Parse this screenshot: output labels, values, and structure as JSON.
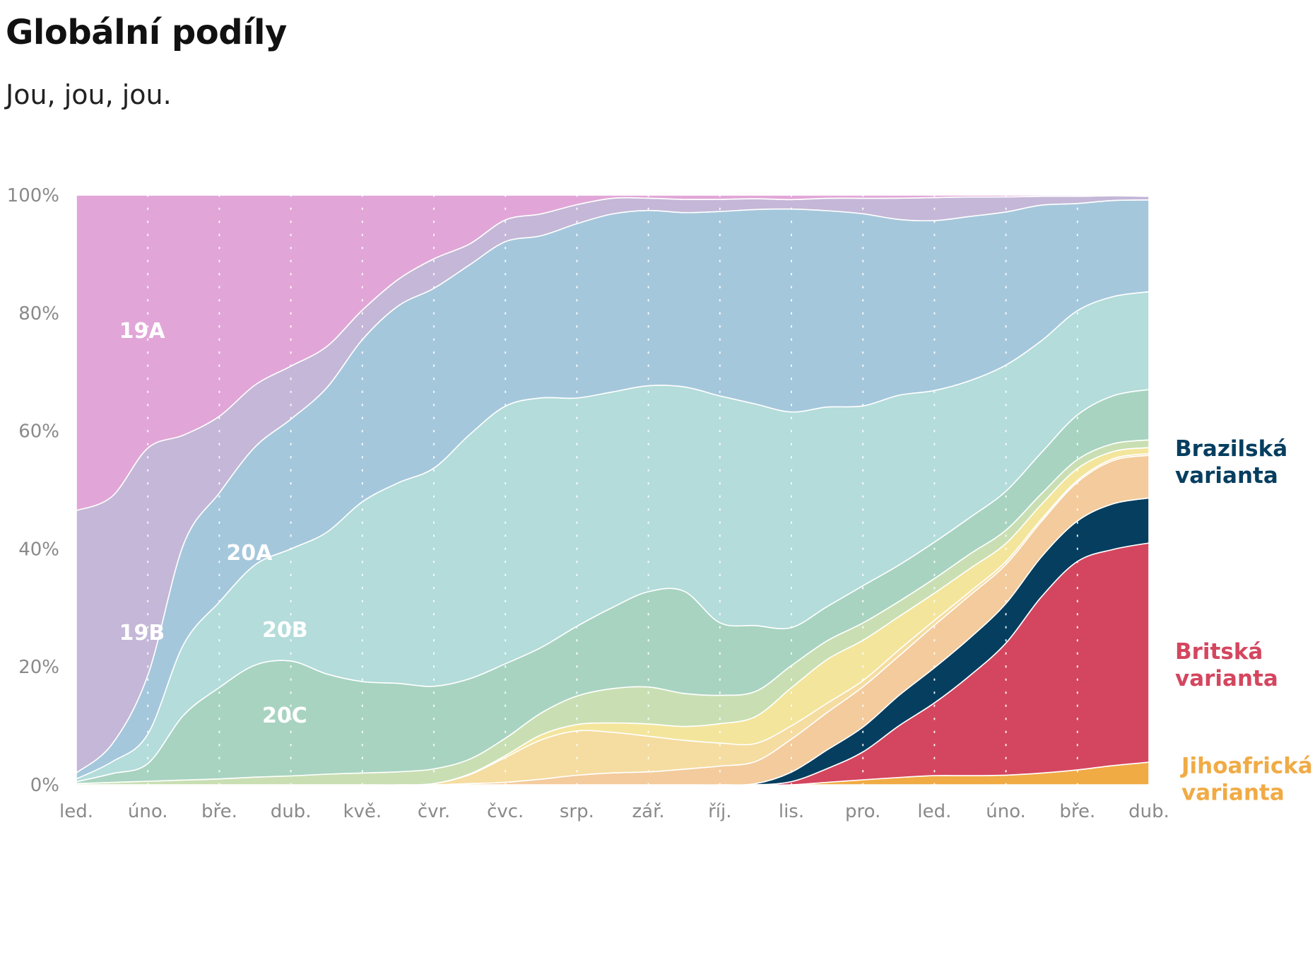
{
  "header": {
    "title": "Globální podíly",
    "subtitle": "Jou, jou, jou."
  },
  "chart_data": {
    "type": "area",
    "stacked": true,
    "normalized": true,
    "title": "Globální podíly",
    "subtitle": "Jou, jou, jou.",
    "xlabel": "",
    "ylabel": "",
    "ylim": [
      0,
      100
    ],
    "y_tick_labels": [
      "0%",
      "20%",
      "40%",
      "60%",
      "80%",
      "100%"
    ],
    "y_ticks": [
      0,
      20,
      40,
      60,
      80,
      100
    ],
    "x_tick_labels": [
      "led.",
      "úno.",
      "bře.",
      "dub.",
      "kvě.",
      "čvr.",
      "čvc.",
      "srp.",
      "zář.",
      "říj.",
      "lis.",
      "pro.",
      "led.",
      "úno.",
      "bře.",
      "dub."
    ],
    "grid": "dotted-vertical",
    "x": [
      "led.",
      "",
      "úno.",
      "",
      "bře.",
      "",
      "dub.",
      "",
      "kvě.",
      "",
      "čvr.",
      "",
      "čvc.",
      "",
      "srp.",
      "",
      "zář.",
      "",
      "říj.",
      "",
      "lis.",
      "",
      "pro.",
      "",
      "led.",
      "",
      "úno.",
      "",
      "bře.",
      "",
      "dub."
    ],
    "series": [
      {
        "name": "Jihoafrická varianta",
        "color": "#f0ab45",
        "values": [
          0,
          0,
          0,
          0,
          0,
          0,
          0,
          0,
          0,
          0,
          0,
          0,
          0,
          0,
          0,
          0,
          0,
          0,
          0,
          0,
          0,
          0.4,
          0.8,
          1.2,
          1.5,
          1.5,
          1.6,
          2.0,
          2.5,
          3.2,
          3.8
        ]
      },
      {
        "name": "Britská varianta",
        "color": "#d4465f",
        "values": [
          0,
          0,
          0,
          0,
          0,
          0,
          0,
          0,
          0,
          0,
          0,
          0,
          0,
          0,
          0,
          0,
          0,
          0,
          0,
          0,
          0.5,
          2.2,
          4.5,
          8.5,
          12.0,
          16.5,
          22.0,
          30.0,
          35.0,
          36.0,
          37.0
        ]
      },
      {
        "name": "Brazilská varianta",
        "color": "#063e5f",
        "values": [
          0,
          0,
          0,
          0,
          0,
          0,
          0,
          0,
          0,
          0,
          0,
          0,
          0,
          0,
          0,
          0,
          0,
          0,
          0,
          0.2,
          1.5,
          3.0,
          4.0,
          5.0,
          5.8,
          6.2,
          6.6,
          6.8,
          6.8,
          7.6,
          7.6
        ]
      },
      {
        "name": "",
        "color": "#f3cb9c",
        "values": [
          0,
          0,
          0,
          0,
          0,
          0,
          0,
          0,
          0,
          0,
          0,
          0,
          0,
          0,
          0,
          0,
          0,
          0,
          0,
          0,
          0,
          0,
          0,
          0,
          0,
          0,
          0,
          0,
          0,
          0,
          0
        ]
      },
      {
        "name": "",
        "color": "#f3cb9c",
        "values": [
          0,
          0,
          0,
          0,
          0,
          0,
          0,
          0,
          0,
          0,
          0,
          0.2,
          0.4,
          0.9,
          1.5,
          1.9,
          2.1,
          2.6,
          3.1,
          3.7,
          5.2,
          6.0,
          6.5,
          6.5,
          7.0,
          7.0,
          6.5,
          6.0,
          6.5,
          7.2,
          7.2
        ]
      },
      {
        "name": "",
        "color": "#f5dca0",
        "values": [
          0,
          0,
          0,
          0,
          0,
          0,
          0,
          0,
          0,
          0,
          0.2,
          1.5,
          4.0,
          6.3,
          7.0,
          6.5,
          5.8,
          4.8,
          3.8,
          3.0,
          2.1,
          1.5,
          1.0,
          1.0,
          0.8,
          0.6,
          0.5,
          0.4,
          0.3,
          0.3,
          0.3
        ]
      },
      {
        "name": "",
        "color": "#f3e59b",
        "values": [
          0,
          0,
          0,
          0,
          0,
          0,
          0,
          0,
          0,
          0,
          0,
          0.1,
          0.3,
          0.8,
          1.0,
          1.5,
          2.0,
          2.3,
          3.2,
          4.5,
          6.0,
          7.0,
          6.5,
          5.5,
          4.5,
          3.8,
          3.0,
          2.5,
          2.0,
          1.2,
          1.0
        ]
      },
      {
        "name": "",
        "color": "#c9dfb3",
        "values": [
          0.2,
          0.4,
          0.6,
          0.8,
          1.0,
          1.3,
          1.5,
          1.8,
          2.0,
          2.2,
          2.5,
          2.5,
          2.8,
          3.5,
          4.5,
          5.5,
          6.0,
          5.5,
          4.7,
          4.2,
          3.5,
          3.0,
          2.8,
          2.5,
          2.4,
          2.4,
          2.2,
          1.8,
          1.5,
          1.3,
          1.3
        ]
      },
      {
        "name": "20C",
        "color": "#a8d3c1",
        "values": [
          0.3,
          1.5,
          3.0,
          11.0,
          15.5,
          19.0,
          19.5,
          17.0,
          15.5,
          15.0,
          14.0,
          13.5,
          12.0,
          10.5,
          11.0,
          13.0,
          15.5,
          17.0,
          12.0,
          11.0,
          6.0,
          5.5,
          6.0,
          6.0,
          6.0,
          6.0,
          6.5,
          7.0,
          7.5,
          8.0,
          8.5
        ]
      },
      {
        "name": "20B",
        "color": "#b3dcda",
        "values": [
          0.5,
          2.0,
          5.0,
          12.0,
          14.5,
          17.0,
          19.0,
          24.0,
          30.5,
          34.0,
          37.0,
          41.0,
          41.5,
          40.0,
          36.0,
          34.5,
          33.5,
          34.0,
          37.5,
          37.0,
          34.0,
          32.0,
          29.0,
          28.0,
          25.0,
          22.5,
          21.0,
          19.0,
          17.5,
          16.5,
          16.5
        ]
      },
      {
        "name": "20A",
        "color": "#a5c7dc",
        "values": [
          1.0,
          3.0,
          10.0,
          17.0,
          18.5,
          20.0,
          22.0,
          24.5,
          27.5,
          30.0,
          30.5,
          28.5,
          26.5,
          26.0,
          27.5,
          28.5,
          28.5,
          29.0,
          30.5,
          32.5,
          32.0,
          31.5,
          31.0,
          29.0,
          28.0,
          27.0,
          25.5,
          23.0,
          18.0,
          16.0,
          15.5
        ]
      },
      {
        "name": "19B",
        "color": "#c4b7d7",
        "values": [
          44.5,
          42.0,
          38.5,
          18.5,
          13.0,
          10.5,
          9.0,
          7.0,
          5.0,
          4.5,
          5.0,
          3.5,
          3.5,
          3.5,
          3.0,
          2.5,
          2.0,
          2.2,
          2.0,
          1.8,
          1.5,
          2.0,
          2.5,
          3.5,
          3.8,
          3.2,
          2.5,
          1.5,
          1.2,
          0.8,
          0.6
        ]
      },
      {
        "name": "19A",
        "color": "#e1a6d7",
        "values": [
          53.5,
          51.1,
          42.9,
          40.7,
          37.5,
          32.2,
          29.0,
          25.7,
          19.5,
          14.3,
          10.8,
          8.2,
          4.0,
          3.0,
          1.5,
          0.5,
          0.5,
          0.7,
          0.7,
          0.6,
          0.7,
          0.5,
          0.5,
          0.5,
          0.4,
          0.3,
          0.3,
          0.2,
          0.2,
          0.1,
          0.2
        ]
      }
    ],
    "annotations": [
      {
        "text": "19A",
        "series": "19A"
      },
      {
        "text": "19B",
        "series": "19B"
      },
      {
        "text": "20A",
        "series": "20A"
      },
      {
        "text": "20B",
        "series": "20B"
      },
      {
        "text": "20C",
        "series": "20C"
      },
      {
        "text": "Brazilská varianta",
        "lines": [
          "Brazilská",
          "varianta"
        ],
        "color": "#063e5f"
      },
      {
        "text": "Britská varianta",
        "lines": [
          "Britská",
          "varianta"
        ],
        "color": "#d4465f"
      },
      {
        "text": "Jihoafrická varianta",
        "lines": [
          "Jihoafrická",
          "varianta"
        ],
        "color": "#f0ab45"
      }
    ]
  }
}
